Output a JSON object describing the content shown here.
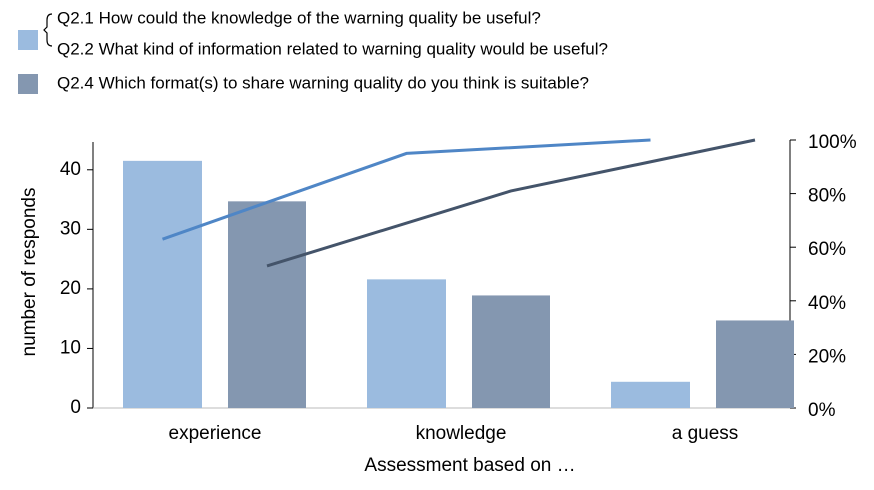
{
  "chart_data": {
    "type": "bar",
    "x_label": "Assessment based on …",
    "y_label": "number of responds",
    "categories": [
      "experience",
      "knowledge",
      "a guess"
    ],
    "series": [
      {
        "name": [
          "Q2.1 How could the knowledge of the warning quality be useful?",
          "Q2.2 What kind of information related to warning quality would be useful?"
        ],
        "color": "#9bbbdf",
        "values": [
          41.5,
          21.6,
          4.4
        ]
      },
      {
        "name": "Q2.4 Which format(s) to share warning quality do you think is suitable?",
        "color": "#8497b0",
        "values": [
          34.7,
          18.9,
          14.7
        ]
      },
      {
        "type": "line",
        "axis": "y2",
        "color": "#4f86c6",
        "values": [
          63,
          95,
          100
        ]
      },
      {
        "type": "line",
        "axis": "y2",
        "color": "#44546a",
        "values": [
          53,
          81,
          100
        ]
      }
    ],
    "ylim": [
      0,
      45
    ],
    "yticks": [
      0,
      10,
      20,
      30,
      40
    ],
    "y2lim": [
      0,
      100
    ],
    "y2ticks": [
      {
        "value": 0,
        "label": "0%"
      },
      {
        "value": 20,
        "label": "20%"
      },
      {
        "value": 40,
        "label": "40%"
      },
      {
        "value": 60,
        "label": "60%"
      },
      {
        "value": 80,
        "label": "80%"
      },
      {
        "value": 100,
        "label": "100%"
      }
    ],
    "grid": false
  }
}
